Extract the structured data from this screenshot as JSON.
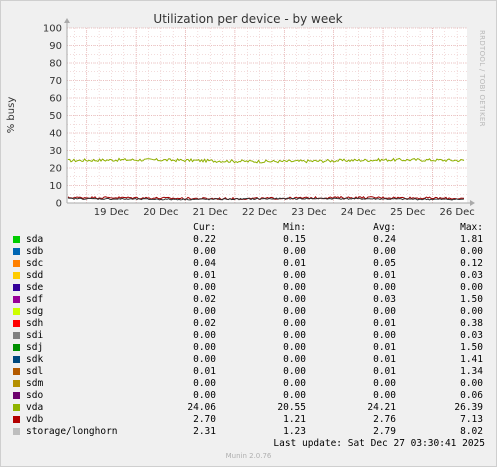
{
  "chart_data": {
    "type": "line",
    "title": "Utilization per device - by week",
    "ylabel": "% busy",
    "ylim": [
      0,
      100
    ],
    "y_ticks": [
      "0",
      "10",
      "20",
      "30",
      "40",
      "50",
      "60",
      "70",
      "80",
      "90",
      "100"
    ],
    "categories": [
      "19 Dec",
      "20 Dec",
      "21 Dec",
      "22 Dec",
      "23 Dec",
      "24 Dec",
      "25 Dec",
      "26 Dec"
    ],
    "x_range_days": [
      18.6,
      26.7
    ],
    "grid": true,
    "series": [
      {
        "name": "vda",
        "color": "#8fb000",
        "base": 24.2,
        "amplitude": 1.3,
        "min": 20.55,
        "max": 26.39
      },
      {
        "name": "vdb",
        "color": "#a00000",
        "base": 2.8,
        "amplitude": 0.9,
        "min": 1.21,
        "max": 7.13
      },
      {
        "name": "storage/longhorn",
        "color": "#303030",
        "base": 2.3,
        "amplitude": 0.6,
        "min": 1.23,
        "max": 8.02
      }
    ]
  },
  "side_label": "RRDTOOL / TOBI OETIKER",
  "legend": {
    "headers": {
      "cur": "Cur:",
      "min": "Min:",
      "avg": "Avg:",
      "max": "Max:"
    },
    "rows": [
      {
        "name": "sda",
        "color": "#00cc00",
        "cur": "0.22",
        "min": "0.15",
        "avg": "0.24",
        "max": "1.81"
      },
      {
        "name": "sdb",
        "color": "#0066b3",
        "cur": "0.00",
        "min": "0.00",
        "avg": "0.00",
        "max": "0.00"
      },
      {
        "name": "sdc",
        "color": "#ff8000",
        "cur": "0.04",
        "min": "0.01",
        "avg": "0.05",
        "max": "0.12"
      },
      {
        "name": "sdd",
        "color": "#ffcc00",
        "cur": "0.01",
        "min": "0.00",
        "avg": "0.01",
        "max": "0.03"
      },
      {
        "name": "sde",
        "color": "#330099",
        "cur": "0.00",
        "min": "0.00",
        "avg": "0.00",
        "max": "0.00"
      },
      {
        "name": "sdf",
        "color": "#990099",
        "cur": "0.02",
        "min": "0.00",
        "avg": "0.03",
        "max": "1.50"
      },
      {
        "name": "sdg",
        "color": "#ccff00",
        "cur": "0.00",
        "min": "0.00",
        "avg": "0.00",
        "max": "0.00"
      },
      {
        "name": "sdh",
        "color": "#ff0000",
        "cur": "0.02",
        "min": "0.00",
        "avg": "0.01",
        "max": "0.38"
      },
      {
        "name": "sdi",
        "color": "#808080",
        "cur": "0.00",
        "min": "0.00",
        "avg": "0.00",
        "max": "0.03"
      },
      {
        "name": "sdj",
        "color": "#008f00",
        "cur": "0.00",
        "min": "0.00",
        "avg": "0.01",
        "max": "1.50"
      },
      {
        "name": "sdk",
        "color": "#00487d",
        "cur": "0.00",
        "min": "0.00",
        "avg": "0.01",
        "max": "1.41"
      },
      {
        "name": "sdl",
        "color": "#b35a00",
        "cur": "0.01",
        "min": "0.00",
        "avg": "0.01",
        "max": "1.34"
      },
      {
        "name": "sdm",
        "color": "#b38f00",
        "cur": "0.00",
        "min": "0.00",
        "avg": "0.00",
        "max": "0.00"
      },
      {
        "name": "sdo",
        "color": "#6b006b",
        "cur": "0.00",
        "min": "0.00",
        "avg": "0.00",
        "max": "0.06"
      },
      {
        "name": "vda",
        "color": "#8fb300",
        "cur": "24.06",
        "min": "20.55",
        "avg": "24.21",
        "max": "26.39"
      },
      {
        "name": "vdb",
        "color": "#b30000",
        "cur": "2.70",
        "min": "1.21",
        "avg": "2.76",
        "max": "7.13"
      },
      {
        "name": "storage/longhorn",
        "color": "#bebebe",
        "cur": "2.31",
        "min": "1.23",
        "avg": "2.79",
        "max": "8.02"
      }
    ]
  },
  "last_update": "Last update: Sat Dec 27 03:30:41 2025",
  "munin_version": "Munin 2.0.76"
}
